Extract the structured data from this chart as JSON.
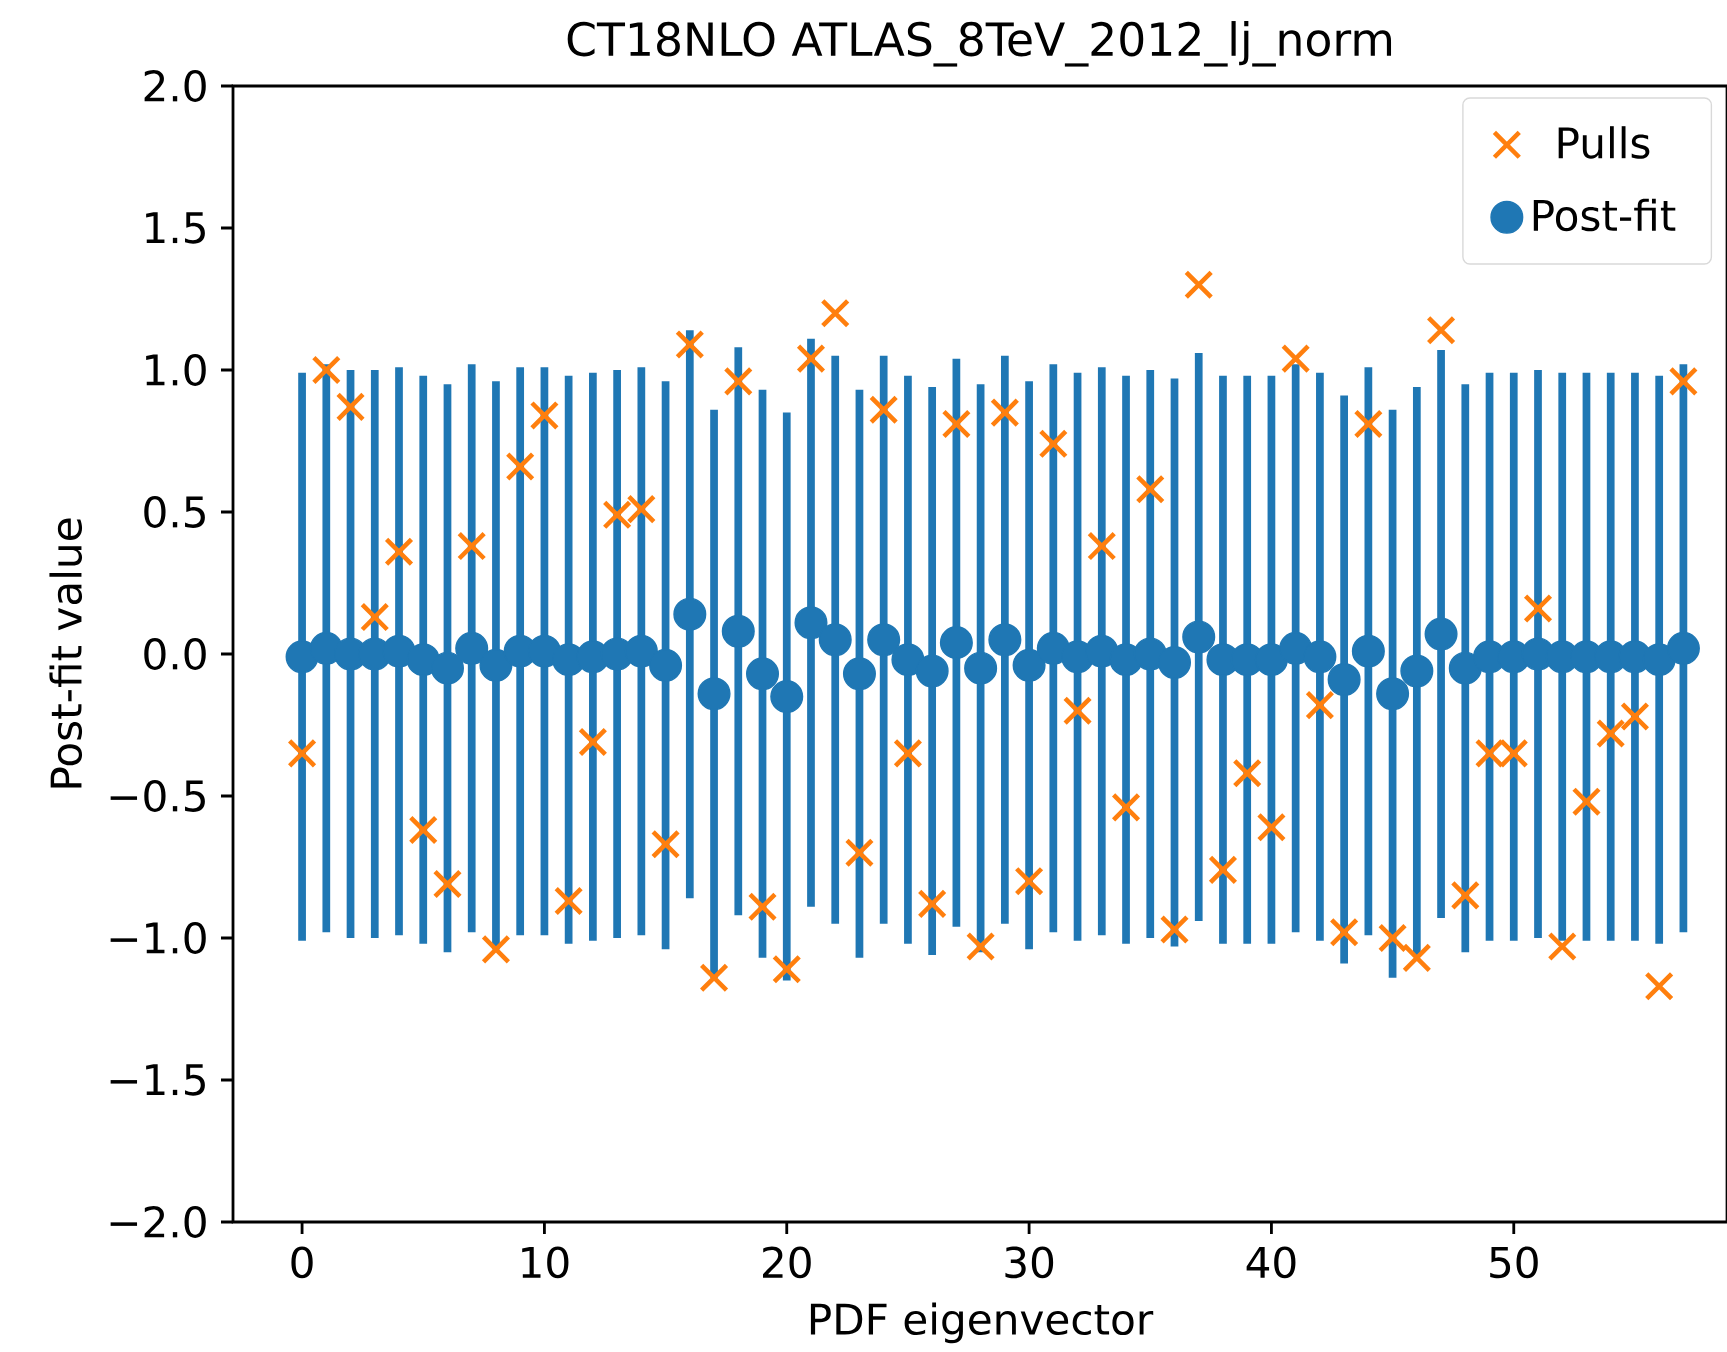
{
  "chart_data": {
    "type": "scatter",
    "title": "CT18NLO ATLAS_8TeV_2012_lj_norm",
    "xlabel": "PDF eigenvector",
    "ylabel": "Post-fit value",
    "x": [
      0,
      1,
      2,
      3,
      4,
      5,
      6,
      7,
      8,
      9,
      10,
      11,
      12,
      13,
      14,
      15,
      16,
      17,
      18,
      19,
      20,
      21,
      22,
      23,
      24,
      25,
      26,
      27,
      28,
      29,
      30,
      31,
      32,
      33,
      34,
      35,
      36,
      37,
      38,
      39,
      40,
      41,
      42,
      43,
      44,
      45,
      46,
      47,
      48,
      49,
      50,
      51,
      52,
      53,
      54,
      55,
      56,
      57
    ],
    "series": [
      {
        "name": "Post-fit",
        "marker": "circle",
        "color": "#1f77b4",
        "values": [
          -0.01,
          0.02,
          0.0,
          0.0,
          0.01,
          -0.02,
          -0.05,
          0.02,
          -0.04,
          0.01,
          0.01,
          -0.02,
          -0.01,
          0.0,
          0.01,
          -0.04,
          0.14,
          -0.14,
          0.08,
          -0.07,
          -0.15,
          0.11,
          0.05,
          -0.07,
          0.05,
          -0.02,
          -0.06,
          0.04,
          -0.05,
          0.05,
          -0.04,
          0.02,
          -0.01,
          0.01,
          -0.02,
          0.0,
          -0.03,
          0.06,
          -0.02,
          -0.02,
          -0.02,
          0.02,
          -0.01,
          -0.09,
          0.01,
          -0.14,
          -0.06,
          0.07,
          -0.05,
          -0.01,
          -0.01,
          0.0,
          -0.01,
          -0.01,
          -0.01,
          -0.01,
          -0.02,
          0.02
        ],
        "errors": [
          1.0,
          1.0,
          1.0,
          1.0,
          1.0,
          1.0,
          1.0,
          1.0,
          1.0,
          1.0,
          1.0,
          1.0,
          1.0,
          1.0,
          1.0,
          1.0,
          1.0,
          1.0,
          1.0,
          1.0,
          1.0,
          1.0,
          1.0,
          1.0,
          1.0,
          1.0,
          1.0,
          1.0,
          1.0,
          1.0,
          1.0,
          1.0,
          1.0,
          1.0,
          1.0,
          1.0,
          1.0,
          1.0,
          1.0,
          1.0,
          1.0,
          1.0,
          1.0,
          1.0,
          1.0,
          1.0,
          1.0,
          1.0,
          1.0,
          1.0,
          1.0,
          1.0,
          1.0,
          1.0,
          1.0,
          1.0,
          1.0,
          1.0
        ]
      },
      {
        "name": "Pulls",
        "marker": "cross",
        "color": "#ff7f0e",
        "values": [
          -0.35,
          1.0,
          0.87,
          0.13,
          0.36,
          -0.62,
          -0.81,
          0.38,
          -1.04,
          0.66,
          0.84,
          -0.87,
          -0.31,
          0.49,
          0.51,
          -0.67,
          1.09,
          -1.14,
          0.96,
          -0.89,
          -1.11,
          1.04,
          1.2,
          -0.7,
          0.86,
          -0.35,
          -0.88,
          0.81,
          -1.03,
          0.85,
          -0.8,
          0.74,
          -0.2,
          0.38,
          -0.54,
          0.58,
          -0.97,
          1.3,
          -0.76,
          -0.42,
          -0.61,
          1.04,
          -0.18,
          -0.98,
          0.81,
          -1.0,
          -1.07,
          1.14,
          -0.85,
          -0.35,
          -0.35,
          0.16,
          -1.03,
          -0.52,
          -0.28,
          -0.22,
          -1.17,
          0.96
        ]
      }
    ],
    "xlim": [
      -2.85,
      58.8
    ],
    "ylim": [
      -2.0,
      2.0
    ],
    "xticks": [
      0,
      10,
      20,
      30,
      40,
      50
    ],
    "yticks": [
      {
        "value": -2.0,
        "label": "−2.0"
      },
      {
        "value": -1.5,
        "label": "−1.5"
      },
      {
        "value": -1.0,
        "label": "−1.0"
      },
      {
        "value": -0.5,
        "label": "−0.5"
      },
      {
        "value": 0.0,
        "label": "0.0"
      },
      {
        "value": 0.5,
        "label": "0.5"
      },
      {
        "value": 1.0,
        "label": "1.0"
      },
      {
        "value": 1.5,
        "label": "1.5"
      },
      {
        "value": 2.0,
        "label": "2.0"
      }
    ],
    "legend": "top right"
  }
}
